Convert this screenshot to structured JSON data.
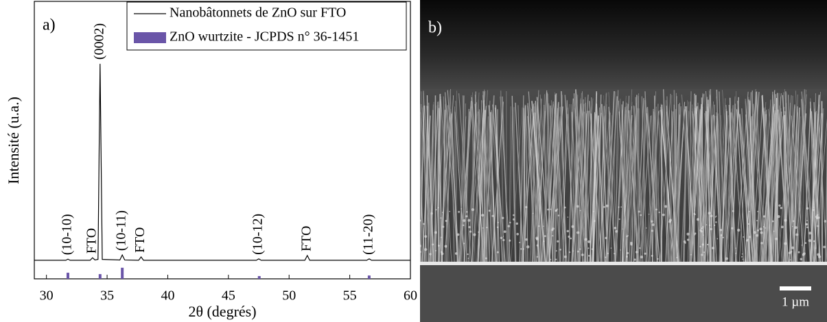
{
  "chart_data": {
    "type": "line",
    "panel_label": "a)",
    "xlabel": "2θ (degrés)",
    "ylabel": "Intensité (u.a.)",
    "xlim": [
      29,
      60
    ],
    "xticks": [
      30,
      35,
      40,
      45,
      50,
      55,
      60
    ],
    "ylim": [
      0,
      100
    ],
    "grid": false,
    "legend": "upper right",
    "series": [
      {
        "name": "Nanobâtonnets de ZnO sur FTO",
        "type": "line",
        "color": "#000000",
        "x": [
          29,
          31.6,
          31.77,
          31.95,
          33.6,
          33.8,
          34.0,
          34.25,
          34.42,
          34.6,
          36.05,
          36.25,
          36.45,
          37.6,
          37.8,
          38.0,
          47.3,
          47.5,
          47.7,
          51.3,
          51.5,
          51.7,
          56.4,
          56.6,
          56.8,
          60
        ],
        "values": [
          6.7,
          6.7,
          7.1,
          6.7,
          6.7,
          7.6,
          6.8,
          7.0,
          77.5,
          7.0,
          6.8,
          8.6,
          6.8,
          6.7,
          7.9,
          6.7,
          6.7,
          7.2,
          6.7,
          6.7,
          8.4,
          6.7,
          6.7,
          7.2,
          6.7,
          6.7
        ]
      },
      {
        "name": "ZnO wurtzite - JCPDS n° 36-1451",
        "type": "bar",
        "color": "#6a55a8",
        "x": [
          31.77,
          34.42,
          36.25,
          47.54,
          56.6
        ],
        "values": [
          2.2,
          1.7,
          4.0,
          1.0,
          1.2
        ]
      }
    ],
    "annotations": [
      {
        "text": "(10-10)",
        "x": 31.77
      },
      {
        "text": "FTO",
        "x": 33.8
      },
      {
        "text": "(0002)",
        "x": 34.42
      },
      {
        "text": "(10-11)",
        "x": 36.25
      },
      {
        "text": "FTO",
        "x": 37.8
      },
      {
        "text": "(10-12)",
        "x": 47.5
      },
      {
        "text": "FTO",
        "x": 51.5
      },
      {
        "text": "(11-20)",
        "x": 56.6
      }
    ]
  },
  "sem_image": {
    "panel_label": "b)",
    "scale_bar": "1 µm"
  }
}
